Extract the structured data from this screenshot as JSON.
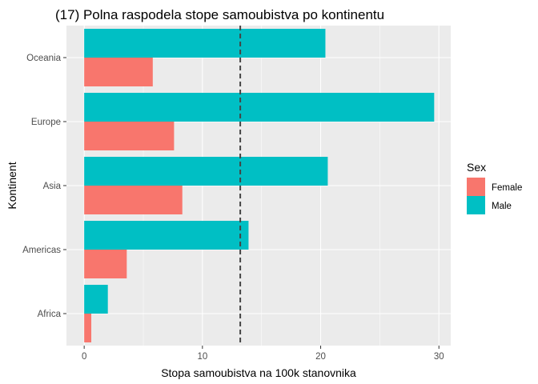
{
  "chart_data": {
    "type": "bar",
    "orientation": "horizontal",
    "title": "(17) Polna raspodela stope samoubistva po kontinentu",
    "xlabel": "Stopa samoubistva na 100k stanovnika",
    "ylabel": "Kontinent",
    "categories": [
      "Africa",
      "Americas",
      "Asia",
      "Europe",
      "Oceania"
    ],
    "series": [
      {
        "name": "Female",
        "color": "#F8766D",
        "values": [
          0.6,
          3.6,
          8.3,
          7.6,
          5.8
        ]
      },
      {
        "name": "Male",
        "color": "#00BFC4",
        "values": [
          2.0,
          13.9,
          20.6,
          29.6,
          20.4
        ]
      }
    ],
    "reference_line": {
      "x": 13.2,
      "style": "dashed",
      "color": "#444444"
    },
    "xlim": [
      -1.5,
      31.0
    ],
    "xticks": [
      0,
      10,
      20,
      30
    ],
    "grid": true,
    "panel_background": "#EBEBEB",
    "legend": {
      "title": "Sex",
      "position": "right"
    }
  }
}
